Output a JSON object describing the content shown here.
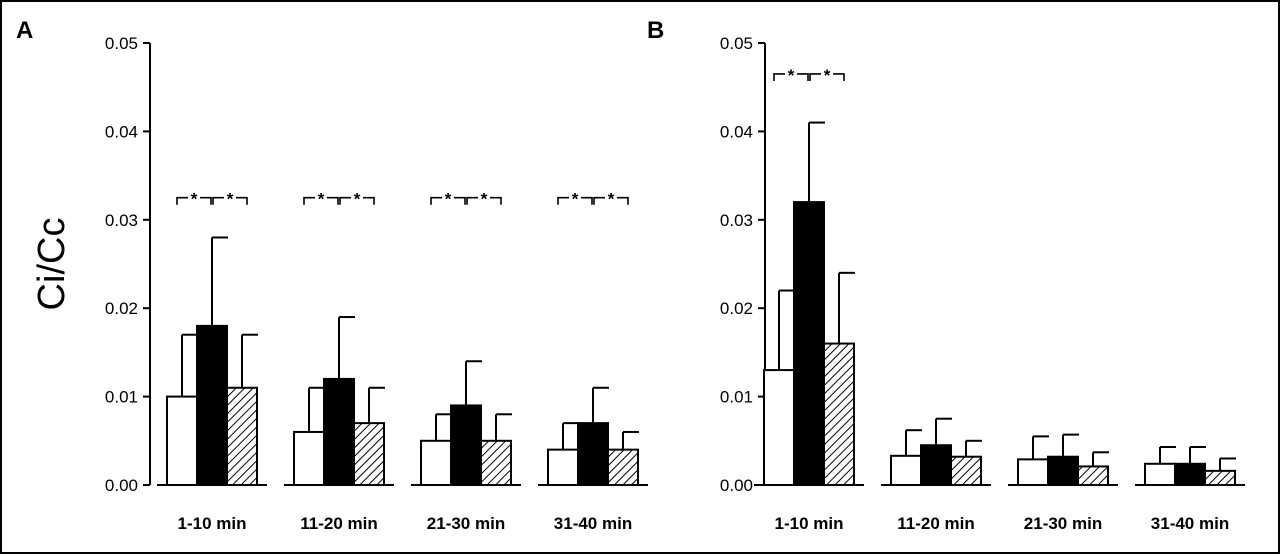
{
  "figure": {
    "ylabel": "Ci/Cc"
  },
  "chart_data": [
    {
      "type": "bar",
      "panel_label": "A",
      "categories": [
        "1-10 min",
        "11-20 min",
        "21-30 min",
        "31-40 min"
      ],
      "series": [
        {
          "fill": "white",
          "values": [
            0.01,
            0.006,
            0.005,
            0.004
          ],
          "errors": [
            0.007,
            0.005,
            0.003,
            0.003
          ]
        },
        {
          "fill": "black",
          "values": [
            0.018,
            0.012,
            0.009,
            0.007
          ],
          "errors": [
            0.01,
            0.007,
            0.005,
            0.004
          ]
        },
        {
          "fill": "hatched",
          "values": [
            0.011,
            0.007,
            0.005,
            0.004
          ],
          "errors": [
            0.006,
            0.004,
            0.003,
            0.002
          ]
        }
      ],
      "yticks": [
        "0.00",
        "0.01",
        "0.02",
        "0.03",
        "0.04",
        "0.05"
      ],
      "ylim": [
        0,
        0.05
      ],
      "significance": [
        {
          "category": 0,
          "marker": "*",
          "y": 0.0325
        },
        {
          "category": 1,
          "marker": "*",
          "y": 0.0325
        },
        {
          "category": 2,
          "marker": "*",
          "y": 0.0325
        },
        {
          "category": 3,
          "marker": "*",
          "y": 0.0325
        }
      ]
    },
    {
      "type": "bar",
      "panel_label": "B",
      "categories": [
        "1-10 min",
        "11-20 min",
        "21-30 min",
        "31-40 min"
      ],
      "series": [
        {
          "fill": "white",
          "values": [
            0.013,
            0.0033,
            0.0029,
            0.0024
          ],
          "errors": [
            0.009,
            0.0029,
            0.0026,
            0.0019
          ]
        },
        {
          "fill": "black",
          "values": [
            0.032,
            0.0045,
            0.0032,
            0.0024
          ],
          "errors": [
            0.009,
            0.003,
            0.0025,
            0.0019
          ]
        },
        {
          "fill": "hatched",
          "values": [
            0.016,
            0.0032,
            0.0021,
            0.0016
          ],
          "errors": [
            0.008,
            0.0018,
            0.0016,
            0.0014
          ]
        }
      ],
      "yticks": [
        "0.00",
        "0.01",
        "0.02",
        "0.03",
        "0.04",
        "0.05"
      ],
      "ylim": [
        0,
        0.05
      ],
      "significance": [
        {
          "category": 0,
          "marker": "*",
          "y": 0.0465
        }
      ]
    }
  ]
}
